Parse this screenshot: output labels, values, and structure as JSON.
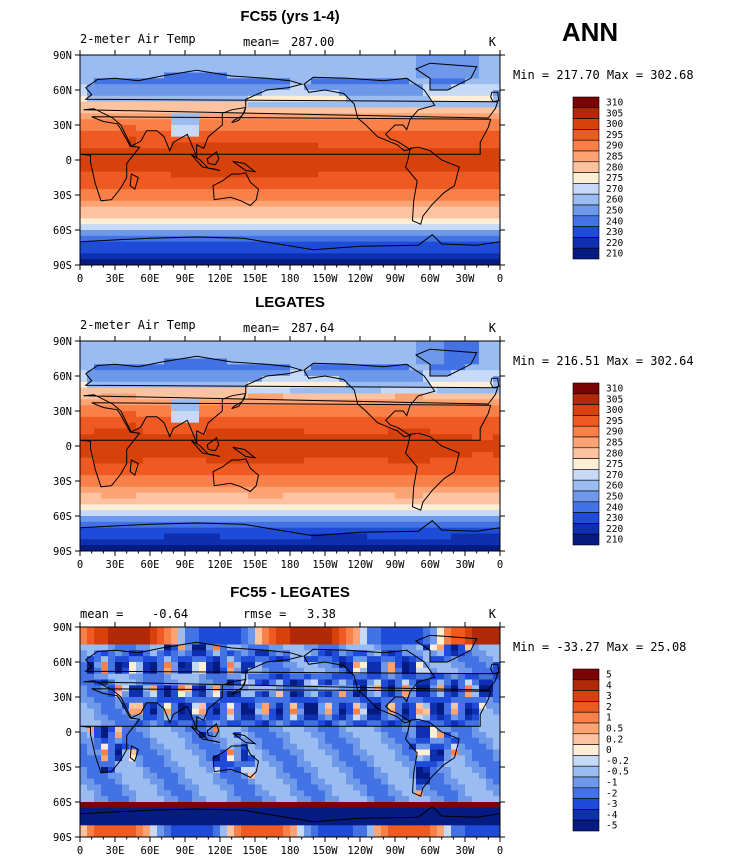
{
  "season": "ANN",
  "longitude_ticks": [
    "0",
    "30E",
    "60E",
    "90E",
    "120E",
    "150E",
    "180",
    "150W",
    "120W",
    "90W",
    "60W",
    "30W",
    "0"
  ],
  "latitude_ticks": [
    "90N",
    "60N",
    "30N",
    "0",
    "30S",
    "60S",
    "90S"
  ],
  "chart_data": [
    {
      "type": "heatmap",
      "title": "FC55 (yrs 1-4)",
      "variable": "2-meter Air Temp",
      "units": "K",
      "stat_left_label": "mean=",
      "stat_left_value": "287.00",
      "stat_right_label": "",
      "stat_right_value": "",
      "minmax": "Min = 217.70 Max = 302.68",
      "xlim": [
        0,
        360
      ],
      "ylim": [
        -90,
        90
      ],
      "levels": [
        "310",
        "305",
        "300",
        "295",
        "290",
        "285",
        "280",
        "275",
        "270",
        "260",
        "250",
        "240",
        "230",
        "220",
        "210"
      ],
      "colors": [
        "#7a0403",
        "#b02a07",
        "#d7410b",
        "#ee5a22",
        "#f98149",
        "#fca273",
        "#fdc3a1",
        "#feeed6",
        "#c6d9f6",
        "#9bbcf1",
        "#6e98ea",
        "#4372e4",
        "#1e4bd8",
        "#0d2fb0",
        "#061b82"
      ]
    },
    {
      "type": "heatmap",
      "title": "LEGATES",
      "variable": "2-meter Air Temp",
      "units": "K",
      "stat_left_label": "mean=",
      "stat_left_value": "287.64",
      "stat_right_label": "",
      "stat_right_value": "",
      "minmax": "Min = 216.51 Max = 302.64",
      "xlim": [
        0,
        360
      ],
      "ylim": [
        -90,
        90
      ],
      "levels": [
        "310",
        "305",
        "300",
        "295",
        "290",
        "285",
        "280",
        "275",
        "270",
        "260",
        "250",
        "240",
        "230",
        "220",
        "210"
      ],
      "colors": [
        "#7a0403",
        "#b02a07",
        "#d7410b",
        "#ee5a22",
        "#f98149",
        "#fca273",
        "#fdc3a1",
        "#feeed6",
        "#c6d9f6",
        "#9bbcf1",
        "#6e98ea",
        "#4372e4",
        "#1e4bd8",
        "#0d2fb0",
        "#061b82"
      ]
    },
    {
      "type": "heatmap",
      "title": "FC55 - LEGATES",
      "variable": "",
      "units": "K",
      "stat_left_label": "mean =",
      "stat_left_value": "-0.64",
      "stat_right_label": "rmse =",
      "stat_right_value": "3.38",
      "minmax": "Min = -33.27 Max =  25.08",
      "xlim": [
        0,
        360
      ],
      "ylim": [
        -90,
        90
      ],
      "levels": [
        "5",
        "4",
        "3",
        "2",
        "1",
        "0.5",
        "0.2",
        "0",
        "-0.2",
        "-0.5",
        "-1",
        "-2",
        "-3",
        "-4",
        "-5"
      ],
      "colors": [
        "#7a0403",
        "#b02a07",
        "#d7410b",
        "#ee5a22",
        "#f98149",
        "#fca273",
        "#fdc3a1",
        "#feeed6",
        "#c6d9f6",
        "#9bbcf1",
        "#6e98ea",
        "#4372e4",
        "#1e4bd8",
        "#0d2fb0",
        "#061b82"
      ]
    }
  ]
}
